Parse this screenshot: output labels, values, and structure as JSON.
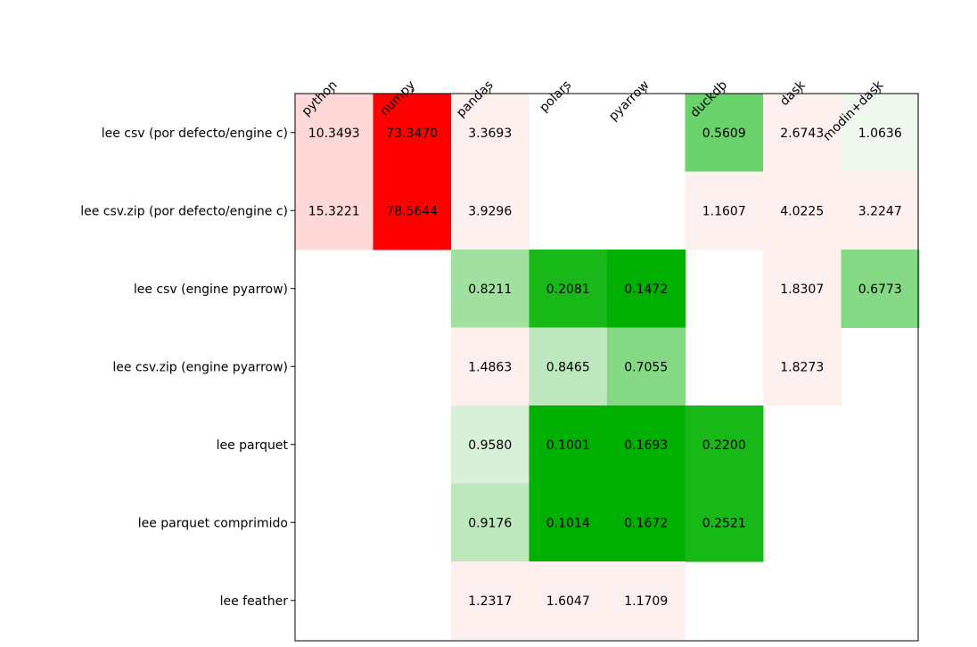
{
  "chart_data": {
    "type": "heatmap",
    "title": "",
    "xlabel": "",
    "ylabel": "",
    "columns": [
      "python",
      "numpy",
      "pandas",
      "polars",
      "pyarrow",
      "duckdb",
      "dask",
      "modin+dask"
    ],
    "rows": [
      "lee csv (por defecto/engine c)",
      "lee csv.zip (por defecto/engine c)",
      "lee csv (engine pyarrow)",
      "lee csv.zip (engine pyarrow)",
      "lee parquet",
      "lee parquet comprimido",
      "lee feather"
    ],
    "values": [
      [
        10.3493,
        73.347,
        3.3693,
        null,
        null,
        0.5609,
        2.6743,
        1.0636
      ],
      [
        15.3221,
        78.5644,
        3.9296,
        null,
        null,
        1.1607,
        4.0225,
        3.2247
      ],
      [
        null,
        null,
        0.8211,
        0.2081,
        0.1472,
        null,
        1.8307,
        0.6773
      ],
      [
        null,
        null,
        1.4863,
        0.8465,
        0.7055,
        null,
        1.8273,
        null
      ],
      [
        null,
        null,
        0.958,
        0.1001,
        0.1693,
        0.22,
        null,
        null
      ],
      [
        null,
        null,
        0.9176,
        0.1014,
        0.1672,
        0.2521,
        null,
        null
      ],
      [
        null,
        null,
        1.2317,
        1.6047,
        1.1709,
        null,
        null,
        null
      ]
    ],
    "cell_labels": [
      [
        "10.3493",
        "73.3470",
        "3.3693",
        "",
        "",
        "0.5609",
        "2.6743",
        "1.0636"
      ],
      [
        "15.3221",
        "78.5644",
        "3.9296",
        "",
        "",
        "1.1607",
        "4.0225",
        "3.2247"
      ],
      [
        "",
        "",
        "0.8211",
        "0.2081",
        "0.1472",
        "",
        "1.8307",
        "0.6773"
      ],
      [
        "",
        "",
        "1.4863",
        "0.8465",
        "0.7055",
        "",
        "1.8273",
        ""
      ],
      [
        "",
        "",
        "0.9580",
        "0.1001",
        "0.1693",
        "0.2200",
        "",
        ""
      ],
      [
        "",
        "",
        "0.9176",
        "0.1014",
        "0.1672",
        "0.2521",
        "",
        ""
      ],
      [
        "",
        "",
        "1.2317",
        "1.6047",
        "1.1709",
        "",
        "",
        ""
      ]
    ],
    "cell_colors": [
      [
        "#ffd8d8",
        "#ff0000",
        "#fff0f0",
        null,
        null,
        "#6ad26a",
        "#fff0f0",
        "#f0f8f0"
      ],
      [
        "#ffd8d8",
        "#ff0000",
        "#fff0f0",
        null,
        null,
        "#fff0f0",
        "#fff0f0",
        "#fff0f0"
      ],
      [
        null,
        null,
        "#a2e0a2",
        "#18b818",
        "#00b000",
        null,
        "#fff0f0",
        "#85d985"
      ],
      [
        null,
        null,
        "#fff0f0",
        "#bde8bd",
        "#85d985",
        null,
        "#fff0f0",
        null
      ],
      [
        null,
        null,
        "#d8f0d8",
        "#00b000",
        "#00b000",
        "#18b818",
        null,
        null
      ],
      [
        null,
        null,
        "#bde8bd",
        "#00b000",
        "#00b000",
        "#18b818",
        null,
        null
      ],
      [
        null,
        null,
        "#fff0f0",
        "#fff0f0",
        "#fff0f0",
        null,
        null,
        null
      ]
    ],
    "grid": false,
    "legend": "none",
    "x_ticks_position": "top",
    "x_tick_rotation_deg": 45
  }
}
